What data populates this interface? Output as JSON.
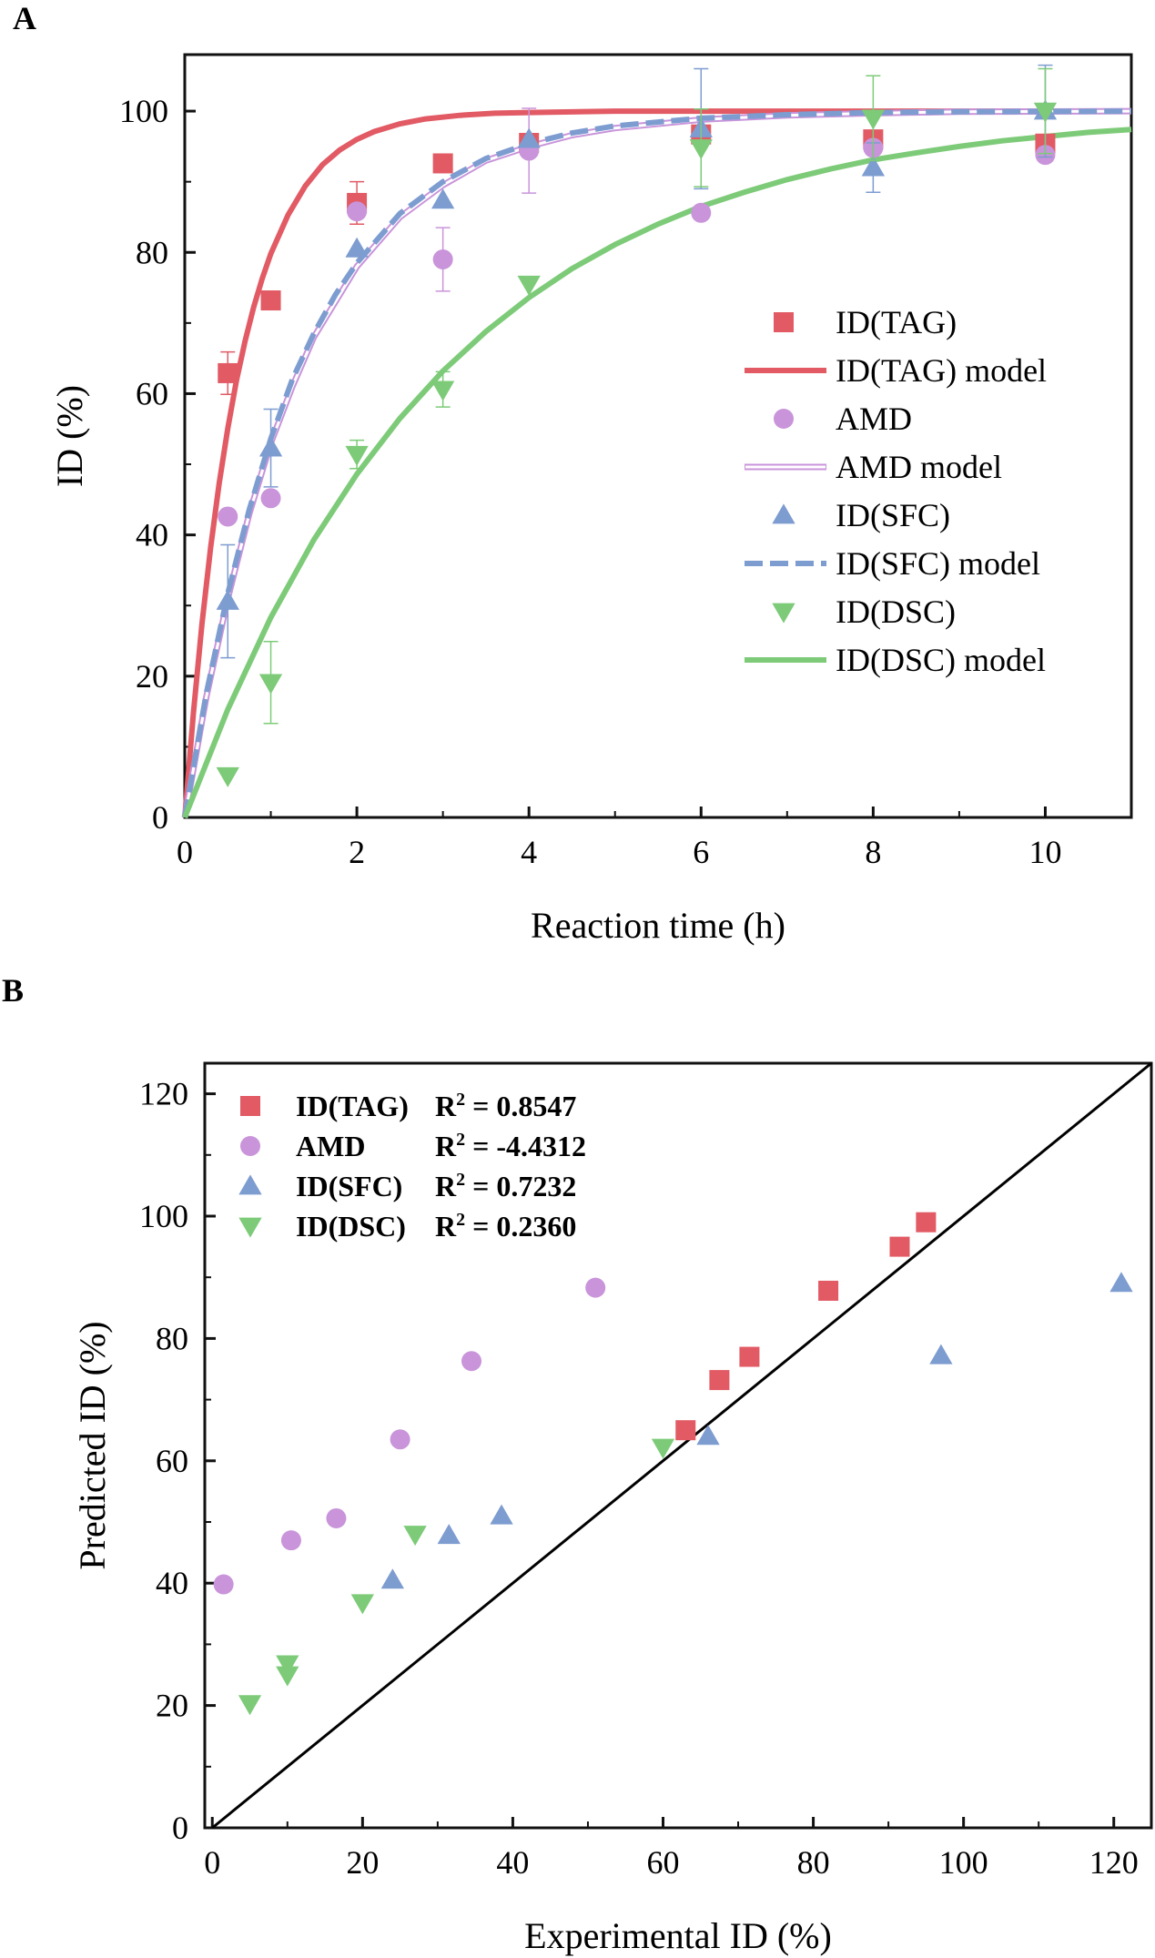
{
  "chart_data": [
    {
      "panel": "A",
      "type": "scatter",
      "xlabel": "Reaction time (h)",
      "ylabel": "ID (%)",
      "xlim": [
        0,
        11
      ],
      "ylim": [
        0,
        108
      ],
      "xticks": [
        "0",
        "2",
        "4",
        "6",
        "8",
        "10"
      ],
      "yticks": [
        "0",
        "20",
        "40",
        "60",
        "80",
        "100"
      ],
      "legend_position": "center-right",
      "series": [
        {
          "name": "ID(TAG)",
          "kind": "points",
          "marker": "square",
          "color": "#e15a64",
          "x": [
            0.5,
            1,
            2,
            3,
            4,
            6,
            8,
            10
          ],
          "y": [
            62.9,
            73.2,
            87.0,
            92.6,
            95.5,
            96.7,
            96.0,
            95.4
          ],
          "err": [
            3,
            0,
            3,
            0,
            0,
            0,
            0,
            0
          ]
        },
        {
          "name": "ID(TAG) model",
          "kind": "line",
          "style": "solid",
          "color": "#e15a64",
          "x": [
            0,
            0.1,
            0.2,
            0.3,
            0.4,
            0.5,
            0.6,
            0.7,
            0.8,
            0.9,
            1.0,
            1.2,
            1.4,
            1.6,
            1.8,
            2.0,
            2.2,
            2.5,
            2.8,
            3.2,
            3.6,
            4,
            5,
            6,
            8,
            11
          ],
          "y": [
            0,
            14.8,
            27.4,
            38.2,
            47.3,
            55.1,
            61.8,
            67.4,
            72.2,
            76.3,
            79.8,
            85.3,
            89.4,
            92.4,
            94.5,
            96.0,
            97.1,
            98.2,
            98.9,
            99.4,
            99.7,
            99.8,
            100,
            100,
            100,
            100
          ]
        },
        {
          "name": "AMD",
          "kind": "points",
          "marker": "circle",
          "color": "#c994da",
          "x": [
            0.5,
            1,
            2,
            3,
            4,
            6,
            8,
            10
          ],
          "y": [
            42.6,
            45.2,
            85.8,
            79.0,
            94.4,
            85.6,
            94.8,
            93.8
          ],
          "err": [
            0,
            0,
            0,
            4.5,
            6,
            0,
            0,
            0
          ]
        },
        {
          "name": "AMD model",
          "kind": "line",
          "style": "double",
          "color": "#c994da",
          "x": [
            0,
            0.25,
            0.5,
            0.75,
            1.0,
            1.25,
            1.5,
            1.75,
            2.0,
            2.5,
            3.0,
            3.5,
            4,
            4.5,
            5,
            6,
            7,
            8,
            9,
            11
          ],
          "y": [
            0,
            17,
            31,
            43,
            53,
            61,
            68,
            73,
            78,
            85,
            89.5,
            93,
            95,
            96.6,
            97.6,
            98.8,
            99.4,
            99.7,
            99.9,
            100
          ]
        },
        {
          "name": "ID(SFC)",
          "kind": "points",
          "marker": "triangle-up",
          "color": "#7d9cd0",
          "x": [
            0.5,
            1,
            2,
            3,
            4,
            6,
            8,
            10
          ],
          "y": [
            30.6,
            52.3,
            80.5,
            87.4,
            96.0,
            97.5,
            92.0,
            100.0
          ],
          "err": [
            8,
            5.5,
            0,
            0,
            0,
            8.5,
            3.5,
            6.5
          ]
        },
        {
          "name": "ID(SFC) model",
          "kind": "line",
          "style": "dashed",
          "color": "#7d9cd0",
          "x": [
            0,
            0.25,
            0.5,
            0.75,
            1.0,
            1.25,
            1.5,
            1.75,
            2.0,
            2.5,
            3.0,
            3.5,
            4,
            4.5,
            5,
            6,
            7,
            8,
            9,
            11
          ],
          "y": [
            0,
            17.5,
            31.7,
            43.6,
            53.6,
            62,
            68.5,
            74,
            78.5,
            85.5,
            90,
            93.3,
            95.4,
            96.9,
            97.9,
            99,
            99.5,
            99.8,
            99.9,
            100
          ]
        },
        {
          "name": "ID(DSC)",
          "kind": "points",
          "marker": "triangle-down",
          "color": "#7dcb78",
          "x": [
            0.5,
            1,
            2,
            3,
            4,
            6,
            8,
            10
          ],
          "y": [
            5.9,
            19.1,
            51.4,
            60.6,
            75.5,
            94.8,
            99.0,
            100.0
          ],
          "err": [
            0,
            5.8,
            2,
            2.5,
            0,
            5.5,
            6,
            6
          ]
        },
        {
          "name": "ID(DSC) model",
          "kind": "line",
          "style": "solid",
          "color": "#7dcb78",
          "x": [
            0,
            0.5,
            1,
            1.5,
            2,
            2.5,
            3,
            3.5,
            4,
            4.5,
            5,
            5.5,
            6,
            6.5,
            7,
            7.5,
            8,
            8.5,
            9,
            9.5,
            10,
            10.5,
            11
          ],
          "y": [
            0,
            15.3,
            28.3,
            39.3,
            48.6,
            56.5,
            63.2,
            68.8,
            73.6,
            77.7,
            81.1,
            84.0,
            86.5,
            88.5,
            90.3,
            91.8,
            93.1,
            94.1,
            95.0,
            95.8,
            96.4,
            97.0,
            97.4
          ]
        }
      ]
    },
    {
      "panel": "B",
      "type": "scatter",
      "xlabel": "Experimental ID (%)",
      "ylabel": "Predicted ID (%)",
      "xlim": [
        -1,
        125
      ],
      "ylim": [
        0,
        125
      ],
      "xticks": [
        "0",
        "20",
        "40",
        "60",
        "80",
        "100",
        "120"
      ],
      "yticks": [
        "0",
        "20",
        "40",
        "60",
        "80",
        "100",
        "120"
      ],
      "legend_position": "top-left",
      "reference_line": {
        "x": [
          0,
          125
        ],
        "y": [
          0,
          125
        ],
        "color": "#000000"
      },
      "series": [
        {
          "name": "ID(TAG)",
          "r2": "R<sup>2</sup> = 0.8547",
          "r2_label": "R",
          "r2_sup": "2",
          "r2_value": " = 0.8547",
          "marker": "square",
          "color": "#e15a64",
          "x": [
            63.0,
            67.5,
            71.5,
            82.0,
            91.5,
            95.0
          ],
          "y": [
            65.0,
            73.2,
            77.0,
            87.8,
            95.0,
            99.0
          ]
        },
        {
          "name": "AMD",
          "r2_label": "R",
          "r2_sup": "2",
          "r2_value": " = -4.4312",
          "marker": "circle",
          "color": "#c994da",
          "x": [
            1.5,
            10.5,
            16.5,
            25.0,
            34.5,
            51.0
          ],
          "y": [
            39.8,
            47.0,
            50.6,
            63.5,
            76.3,
            88.3
          ]
        },
        {
          "name": "ID(SFC)",
          "r2_label": "R",
          "r2_sup": "2",
          "r2_value": " = 0.7232",
          "marker": "triangle-up",
          "color": "#7d9cd0",
          "x": [
            24.0,
            31.5,
            38.5,
            66.0,
            97.0,
            121.0
          ],
          "y": [
            40.5,
            47.8,
            51.0,
            64.0,
            77.2,
            89.0
          ]
        },
        {
          "name": "ID(DSC)",
          "r2_label": "R",
          "r2_sup": "2",
          "r2_value": " = 0.2360",
          "marker": "triangle-down",
          "color": "#7dcb78",
          "x": [
            5.0,
            10.0,
            10.0,
            20.0,
            27.0,
            60.0
          ],
          "y": [
            20.3,
            25.0,
            26.8,
            36.8,
            48.0,
            62.2
          ]
        }
      ]
    }
  ],
  "panel_labels": [
    "A",
    "B"
  ]
}
